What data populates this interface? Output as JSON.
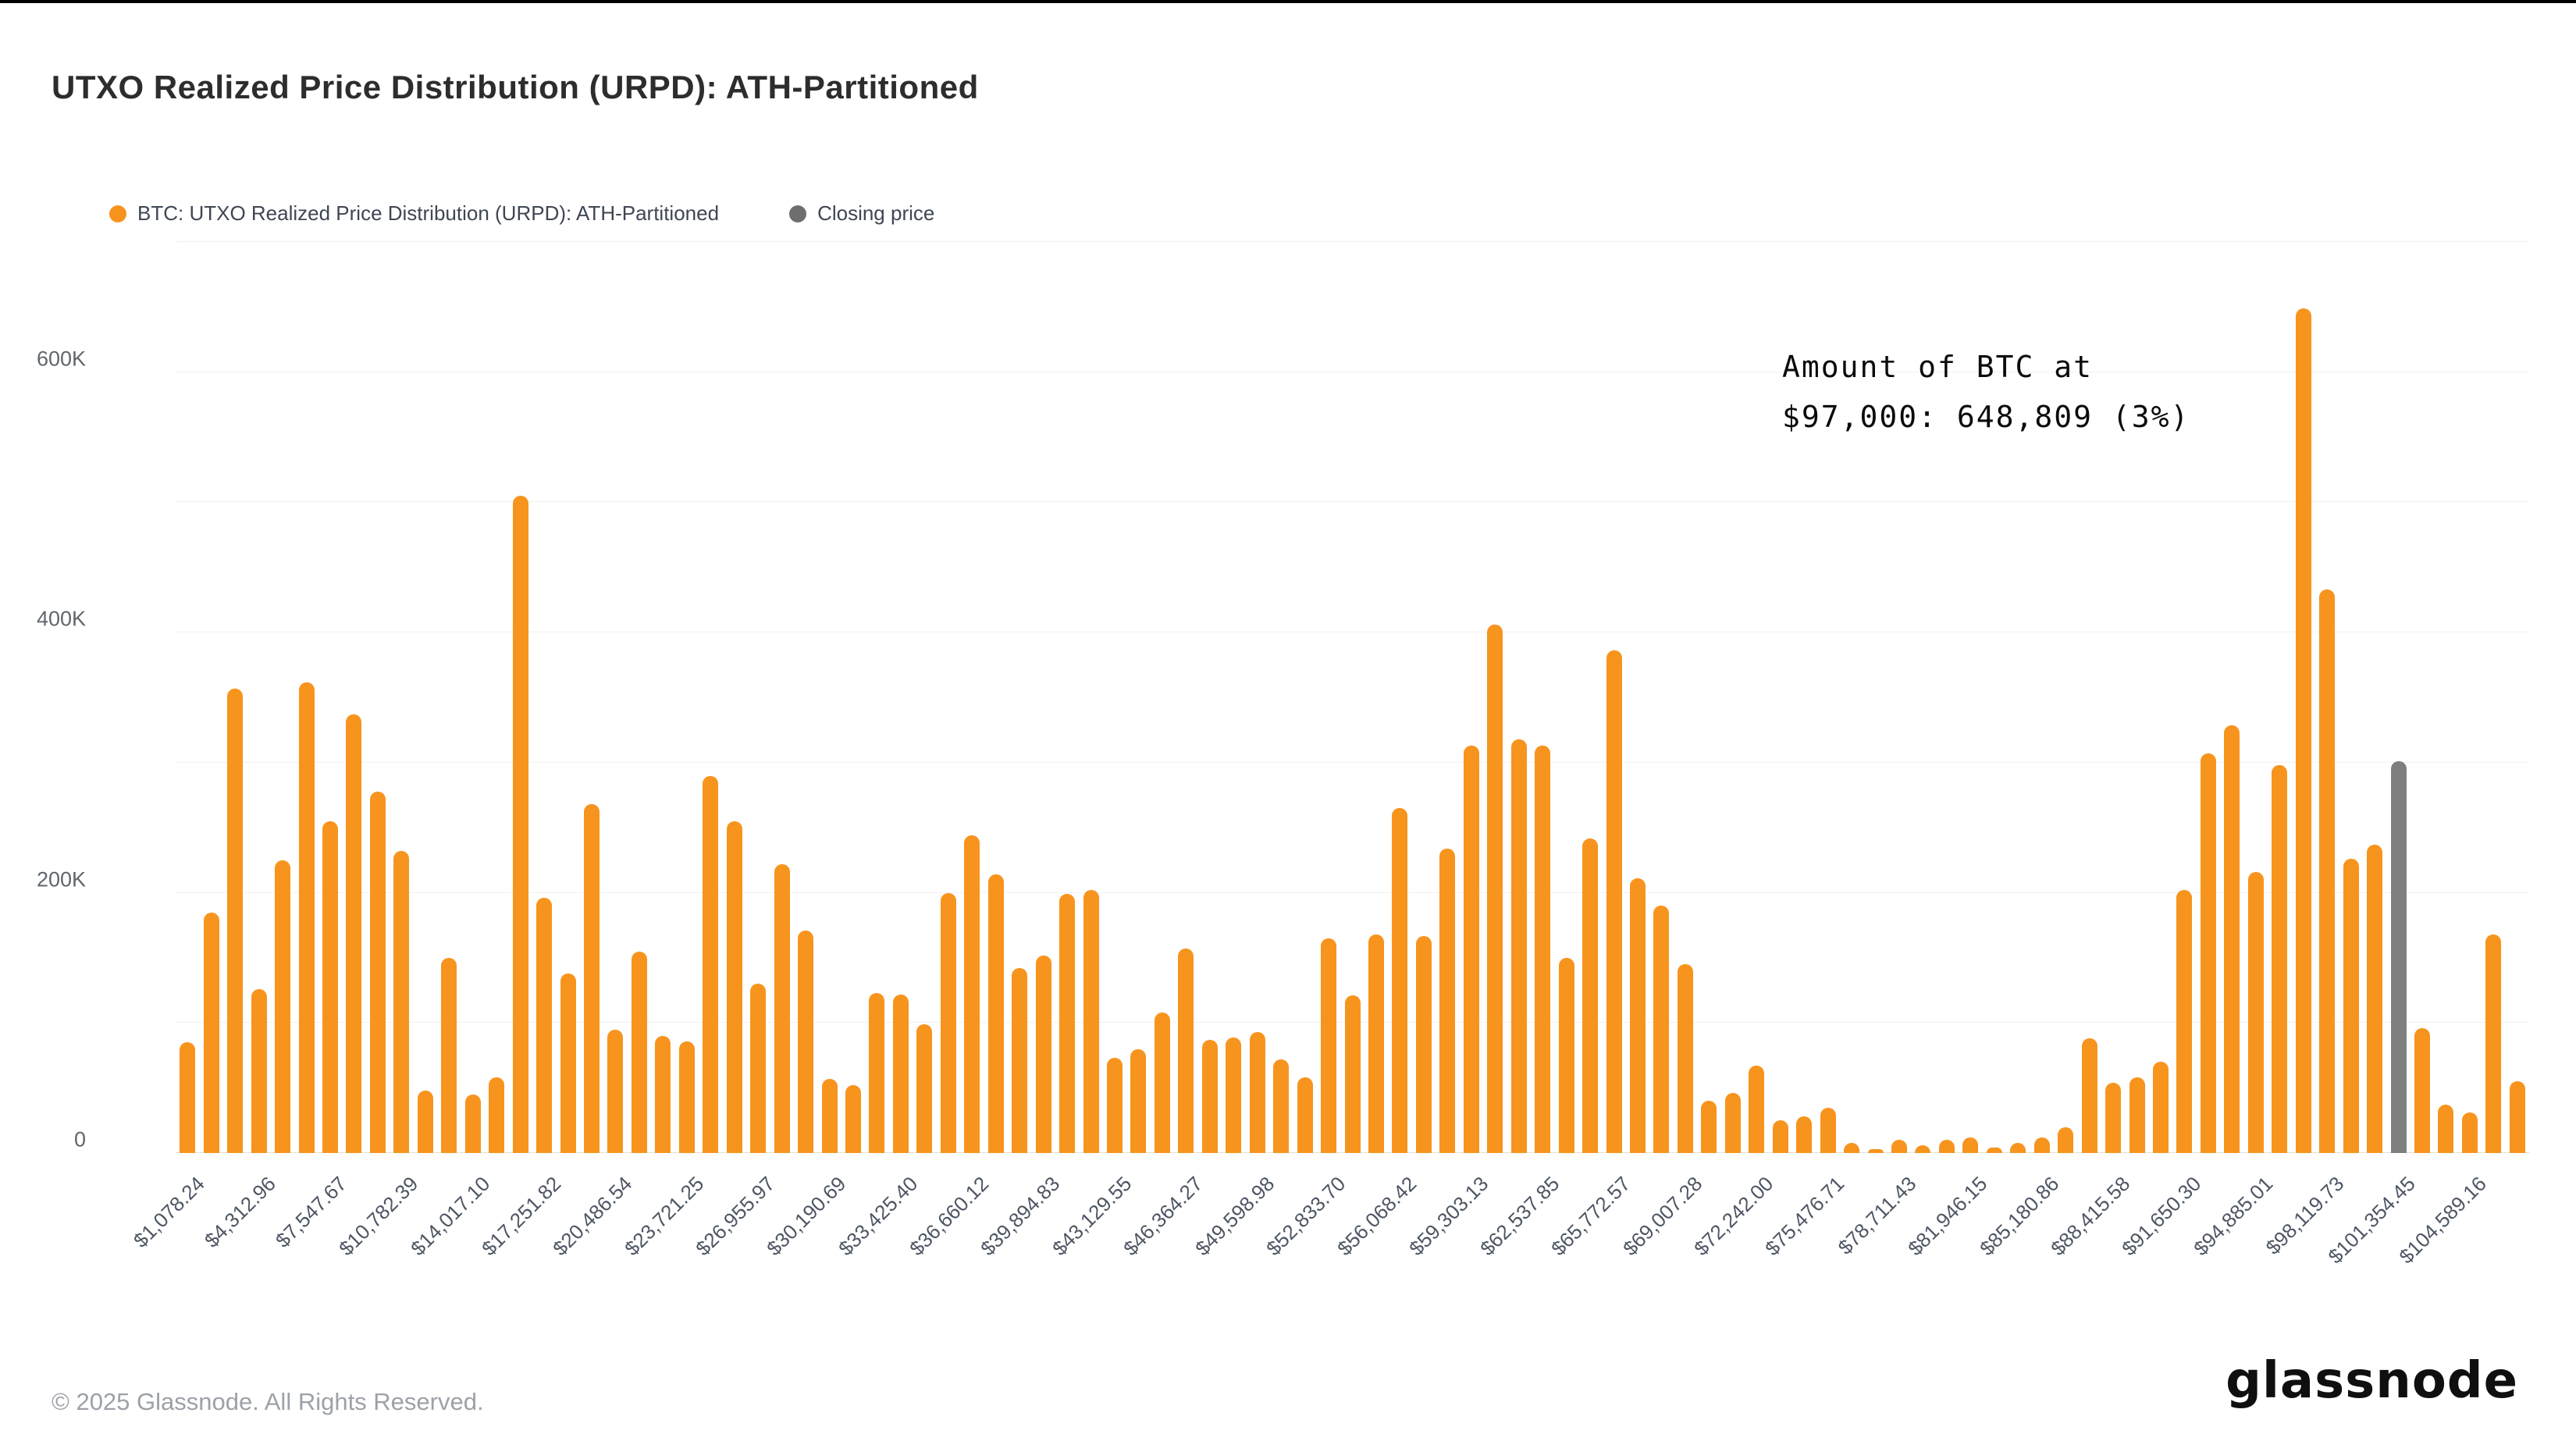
{
  "page": {
    "top_bar_color": "#000000",
    "background": "#ffffff"
  },
  "header": {
    "title": "UTXO Realized Price Distribution (URPD): ATH-Partitioned"
  },
  "legend": [
    {
      "label": "BTC: UTXO Realized Price Distribution (URPD): ATH-Partitioned",
      "color": "#F7941E"
    },
    {
      "label": "Closing price",
      "color": "#6E6E6E"
    }
  ],
  "annotation": {
    "line1": "Amount of BTC at",
    "line2": "$97,000: 648,809 (3%)"
  },
  "chart_data": {
    "type": "bar",
    "title": "UTXO Realized Price Distribution (URPD): ATH-Partitioned",
    "xlabel": "",
    "ylabel": "",
    "ylim": [
      0,
      700000
    ],
    "gridline_step": 100000,
    "grid": true,
    "legend_position": "top-left",
    "y_ticks": [
      {
        "value": 0,
        "label": "0"
      },
      {
        "value": 200000,
        "label": "200K"
      },
      {
        "value": 400000,
        "label": "400K"
      },
      {
        "value": 600000,
        "label": "600K"
      }
    ],
    "series_name": "BTC: UTXO Realized Price Distribution (URPD): ATH-Partitioned",
    "bar_color": "#F7941E",
    "closing_price_bar": {
      "index": 93,
      "color": "#7F7F7F",
      "label": "Closing price"
    },
    "values": [
      85000,
      185000,
      357000,
      126000,
      225000,
      362000,
      255000,
      337000,
      278000,
      232000,
      48000,
      150000,
      45000,
      58000,
      505000,
      196000,
      138000,
      268000,
      95000,
      155000,
      90000,
      86000,
      290000,
      255000,
      130000,
      222000,
      171000,
      57000,
      52000,
      123000,
      122000,
      99000,
      200000,
      244000,
      214000,
      142000,
      152000,
      199000,
      202000,
      73000,
      80000,
      108000,
      157000,
      87000,
      89000,
      93000,
      72000,
      58000,
      165000,
      121000,
      168000,
      265000,
      167000,
      234000,
      313000,
      406000,
      318000,
      313000,
      150000,
      242000,
      386000,
      211000,
      190000,
      145000,
      40000,
      46000,
      67000,
      25000,
      28000,
      35000,
      8000,
      3000,
      10000,
      6000,
      10000,
      12000,
      4000,
      8000,
      12000,
      20000,
      88000,
      54000,
      58000,
      70000,
      202000,
      307000,
      329000,
      216000,
      298000,
      648809,
      433000,
      226000,
      237000,
      301000,
      96000,
      37000,
      31000,
      168000,
      55000
    ],
    "x_tick_every": 3,
    "x_tick_labels": [
      "$1,078.24",
      "$4,312.96",
      "$7,547.67",
      "$10,782.39",
      "$14,017.10",
      "$17,251.82",
      "$20,486.54",
      "$23,721.25",
      "$26,955.97",
      "$30,190.69",
      "$33,425.40",
      "$36,660.12",
      "$39,894.83",
      "$43,129.55",
      "$46,364.27",
      "$49,598.98",
      "$52,833.70",
      "$56,068.42",
      "$59,303.13",
      "$62,537.85",
      "$65,772.57",
      "$69,007.28",
      "$72,242.00",
      "$75,476.71",
      "$78,711.43",
      "$81,946.15",
      "$85,180.86",
      "$88,415.58",
      "$91,650.30",
      "$94,885.01",
      "$98,119.73",
      "$101,354.45",
      "$104,589.16"
    ],
    "annotation": "Amount of BTC at $97,000: 648,809 (3%)",
    "highlight": {
      "price": "$97,000",
      "amount_btc": 648809,
      "percent": "3%"
    }
  },
  "footer": {
    "copyright": "© 2025 Glassnode. All Rights Reserved.",
    "logo": "glassnode"
  }
}
